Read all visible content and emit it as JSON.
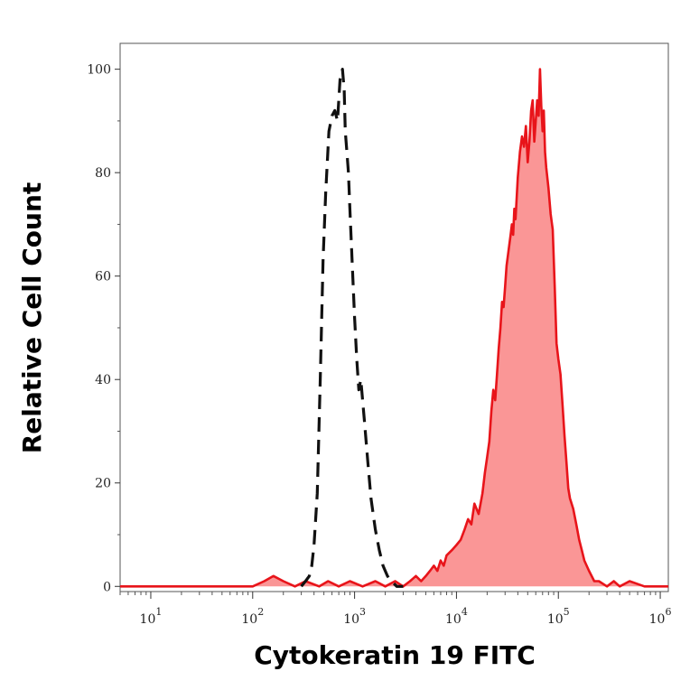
{
  "chart_data": {
    "type": "area",
    "title": "",
    "xlabel": "Cytokeratin 19 FITC",
    "ylabel": "Relative Cell Count",
    "x_scale": "log",
    "xlim": [
      5,
      1200000
    ],
    "ylim": [
      -1,
      105
    ],
    "grid": false,
    "y_ticks": [
      {
        "value": 0,
        "label": "0"
      },
      {
        "value": 20,
        "label": "20"
      },
      {
        "value": 40,
        "label": "40"
      },
      {
        "value": 60,
        "label": "60"
      },
      {
        "value": 80,
        "label": "80"
      },
      {
        "value": 100,
        "label": "100"
      }
    ],
    "x_ticks": [
      {
        "value": 10,
        "base": "10",
        "exp": "1"
      },
      {
        "value": 100,
        "base": "10",
        "exp": "2"
      },
      {
        "value": 1000,
        "base": "10",
        "exp": "3"
      },
      {
        "value": 10000,
        "base": "10",
        "exp": "4"
      },
      {
        "value": 100000,
        "base": "10",
        "exp": "5"
      },
      {
        "value": 1000000,
        "base": "10",
        "exp": "6"
      }
    ],
    "series": [
      {
        "style": "dashed",
        "color": "#111111",
        "fill": "none",
        "x": [
          300,
          330,
          360,
          380,
          400,
          430,
          460,
          490,
          520,
          560,
          600,
          640,
          680,
          720,
          760,
          790,
          810,
          840,
          870,
          900,
          950,
          1000,
          1050,
          1100,
          1150,
          1250,
          1350,
          1450,
          1600,
          1750,
          1900,
          2100,
          2300,
          2600,
          3000
        ],
        "y": [
          0,
          1,
          2,
          4,
          8,
          18,
          40,
          63,
          76,
          88,
          91,
          92,
          90,
          98,
          100,
          96,
          88,
          84,
          80,
          73,
          62,
          52,
          44,
          38,
          40,
          32,
          24,
          17,
          11,
          7,
          4,
          2,
          1,
          0,
          0
        ]
      },
      {
        "style": "solid",
        "color": "#e8141a",
        "fill": "#fa9696",
        "x": [
          5,
          100,
          130,
          160,
          200,
          260,
          330,
          450,
          550,
          700,
          900,
          1200,
          1600,
          2000,
          2500,
          3000,
          3500,
          4000,
          4500,
          5000,
          5500,
          6000,
          6500,
          7000,
          7500,
          8000,
          9000,
          10000,
          11000,
          12000,
          13000,
          14000,
          15000,
          16500,
          18000,
          19000,
          20000,
          21000,
          22000,
          23000,
          24000,
          25000,
          26000,
          27000,
          28000,
          29000,
          30000,
          31000,
          32000,
          33000,
          34000,
          35000,
          36000,
          37000,
          38000,
          40000,
          42000,
          44000,
          46000,
          48000,
          50000,
          52000,
          54000,
          56000,
          58000,
          60000,
          62000,
          64000,
          66000,
          68000,
          70000,
          72000,
          74000,
          76000,
          80000,
          84000,
          88000,
          92000,
          96000,
          100000,
          105000,
          110000,
          115000,
          120000,
          125000,
          130000,
          140000,
          150000,
          160000,
          170000,
          180000,
          200000,
          225000,
          250000,
          300000,
          350000,
          400000,
          500000,
          700000,
          1000000,
          1200000
        ],
        "y": [
          0,
          0,
          1,
          2,
          1,
          0,
          1,
          0,
          1,
          0,
          1,
          0,
          1,
          0,
          1,
          0,
          1,
          2,
          1,
          2,
          3,
          4,
          3,
          5,
          4,
          6,
          7,
          8,
          9,
          11,
          13,
          12,
          16,
          14,
          18,
          22,
          25,
          28,
          34,
          38,
          36,
          41,
          46,
          50,
          55,
          54,
          58,
          62,
          64,
          66,
          68,
          70,
          68,
          73,
          71,
          79,
          84,
          87,
          85,
          89,
          82,
          86,
          92,
          94,
          86,
          90,
          94,
          91,
          100,
          93,
          88,
          92,
          84,
          81,
          77,
          72,
          69,
          58,
          47,
          44,
          41,
          35,
          29,
          24,
          19,
          17,
          15,
          12,
          9,
          7,
          5,
          3,
          1,
          1,
          0,
          1,
          0,
          1,
          0,
          0,
          0
        ]
      }
    ]
  }
}
